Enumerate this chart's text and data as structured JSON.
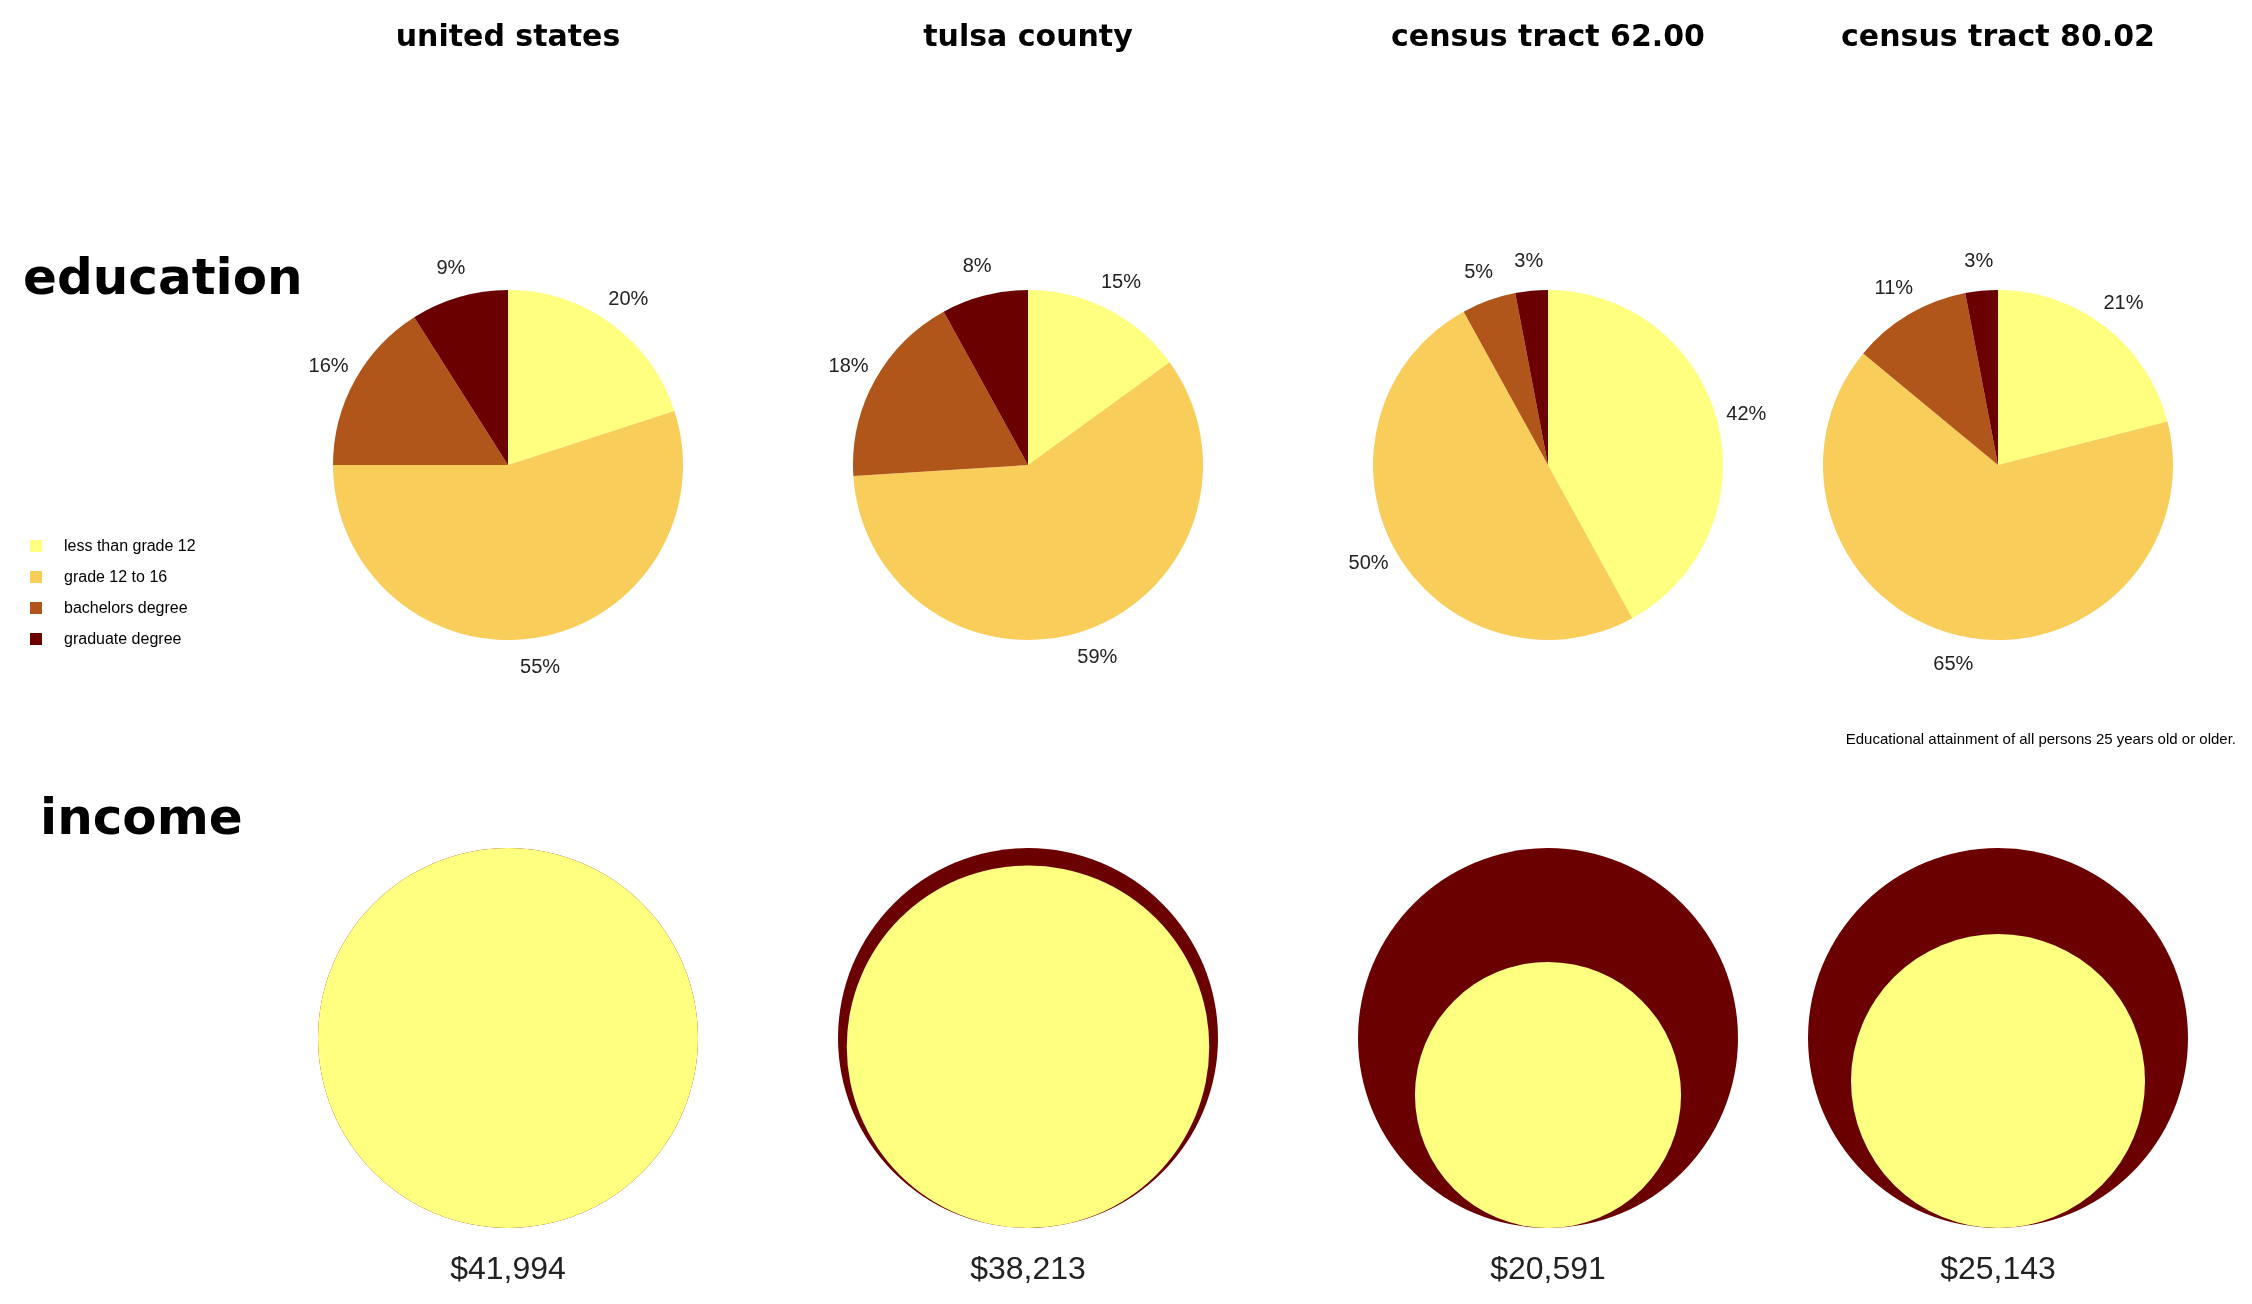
{
  "chart_data": [
    {
      "type": "pie",
      "title": "united states",
      "ylabel": "education",
      "legend": "left",
      "categories": [
        "less than grade 12",
        "grade 12 to 16",
        "bachelors degree",
        "graduate degree"
      ],
      "values": [
        20,
        55,
        16,
        9
      ],
      "value_labels": [
        "20%",
        "55%",
        "16%",
        "9%"
      ],
      "colors": [
        "#ffff80",
        "#f9cd5a",
        "#b0561a",
        "#6b0000"
      ]
    },
    {
      "type": "pie",
      "title": "tulsa county",
      "categories": [
        null,
        null,
        null,
        null
      ],
      "values": [
        15,
        59,
        18,
        8
      ],
      "value_labels": [
        "15%",
        "59%",
        "18%",
        "8%"
      ],
      "colors": [
        "#ffff80",
        "#f9cd5a",
        "#b0561a",
        "#6b0000"
      ]
    },
    {
      "type": "pie",
      "title": "census tract 62.00",
      "categories": [
        null,
        null,
        null,
        null
      ],
      "values": [
        42,
        50,
        5,
        3
      ],
      "value_labels": [
        "42%",
        "50%",
        "5%",
        "3%"
      ],
      "colors": [
        "#ffff80",
        "#f9cd5a",
        "#b0561a",
        "#6b0000"
      ]
    },
    {
      "type": "pie",
      "title": "census tract 80.02",
      "categories": [
        null,
        null,
        null,
        null
      ],
      "values": [
        21,
        65,
        11,
        3
      ],
      "value_labels": [
        "21%",
        "65%",
        "11%",
        "3%"
      ],
      "colors": [
        "#ffff80",
        "#f9cd5a",
        "#b0561a",
        "#6b0000"
      ],
      "annotations": [
        "Educational attainment of all persons 25 years old or older."
      ]
    },
    {
      "type": "other",
      "ylabel": "income",
      "categories": [
        null,
        null,
        null,
        null
      ],
      "values": [
        41994,
        38213,
        20591,
        25143
      ],
      "value_labels": [
        "$41,994",
        "$38,213",
        "$20,591",
        "$25,143"
      ],
      "color": "#ffff80",
      "colors": [
        "#6b0000",
        "#6b0000",
        "#6b0000",
        "#6b0000"
      ]
    }
  ]
}
